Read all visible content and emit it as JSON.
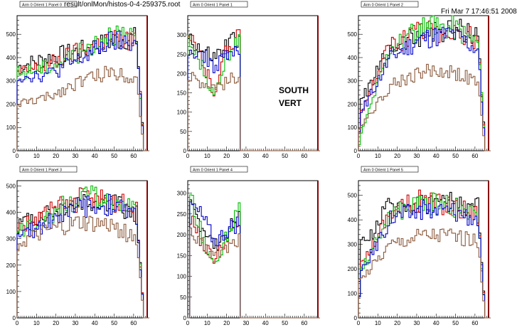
{
  "header": {
    "filename": "result/onlMon/histos-0-4-259375.root",
    "timestamp": "Fri Mar  7 17:46:51 2008"
  },
  "annotation": {
    "line1": "SOUTH",
    "line2": "VERT"
  },
  "colors": {
    "black": "#000000",
    "red": "#cc0000",
    "green": "#00bb00",
    "blue": "#0000cc",
    "brown": "#8b5a3c",
    "frame_right": "#8b0000"
  },
  "chart_data": [
    {
      "type": "line",
      "title": "Arm 0 Orient 1 Panel 0",
      "xlim": [
        0,
        67
      ],
      "ylim": [
        0,
        580
      ],
      "xticks": [
        0,
        10,
        20,
        30,
        40,
        50,
        60
      ],
      "yticks": [
        0,
        100,
        200,
        300,
        400,
        500
      ],
      "profile": {
        "start": 0,
        "end": 64,
        "shape": "broad"
      },
      "series": [
        {
          "color": "black",
          "values": [
            360,
            400,
            430,
            470,
            490
          ]
        },
        {
          "color": "red",
          "values": [
            330,
            370,
            430,
            480,
            470
          ]
        },
        {
          "color": "green",
          "values": [
            330,
            360,
            420,
            510,
            460
          ]
        },
        {
          "color": "blue",
          "values": [
            320,
            330,
            390,
            470,
            460
          ]
        },
        {
          "color": "brown",
          "values": [
            200,
            230,
            300,
            340,
            310
          ]
        }
      ]
    },
    {
      "type": "line",
      "title": "Arm 0 Orient 1 Panel 1",
      "xlim": [
        0,
        67
      ],
      "ylim": [
        0,
        350
      ],
      "xticks": [
        0,
        10,
        20,
        30,
        40,
        50,
        60
      ],
      "yticks": [
        0,
        50,
        100,
        150,
        200,
        250,
        300
      ],
      "profile": {
        "start": 0,
        "end": 26,
        "shape": "dip"
      },
      "series": [
        {
          "color": "black",
          "values": [
            300,
            260,
            240,
            270,
            300
          ]
        },
        {
          "color": "red",
          "values": [
            290,
            240,
            150,
            260,
            320
          ]
        },
        {
          "color": "green",
          "values": [
            280,
            220,
            140,
            240,
            310
          ]
        },
        {
          "color": "blue",
          "values": [
            270,
            250,
            220,
            240,
            260
          ]
        },
        {
          "color": "brown",
          "values": [
            190,
            180,
            170,
            175,
            200
          ]
        }
      ]
    },
    {
      "type": "line",
      "title": "Arm 0 Orient 1 Panel 2",
      "xlim": [
        0,
        67
      ],
      "ylim": [
        0,
        580
      ],
      "xticks": [
        0,
        10,
        20,
        30,
        40,
        50,
        60
      ],
      "yticks": [
        0,
        100,
        200,
        300,
        400,
        500
      ],
      "profile": {
        "start": 0,
        "end": 64,
        "shape": "broad"
      },
      "series": [
        {
          "color": "black",
          "values": [
            200,
            440,
            500,
            520,
            500
          ]
        },
        {
          "color": "red",
          "values": [
            150,
            450,
            510,
            520,
            470
          ]
        },
        {
          "color": "green",
          "values": [
            50,
            450,
            520,
            540,
            450
          ]
        },
        {
          "color": "blue",
          "values": [
            150,
            400,
            480,
            500,
            420
          ]
        },
        {
          "color": "brown",
          "values": [
            100,
            280,
            340,
            340,
            280
          ]
        }
      ]
    },
    {
      "type": "line",
      "title": "Arm 0 Orient 1 Panel 3",
      "xlim": [
        0,
        67
      ],
      "ylim": [
        0,
        520
      ],
      "xticks": [
        0,
        10,
        20,
        30,
        40,
        50,
        60
      ],
      "yticks": [
        0,
        100,
        200,
        300,
        400,
        500
      ],
      "profile": {
        "start": 0,
        "end": 64,
        "shape": "broad"
      },
      "series": [
        {
          "color": "black",
          "values": [
            350,
            400,
            440,
            440,
            380
          ]
        },
        {
          "color": "red",
          "values": [
            340,
            400,
            450,
            450,
            390
          ]
        },
        {
          "color": "green",
          "values": [
            320,
            390,
            460,
            450,
            380
          ]
        },
        {
          "color": "blue",
          "values": [
            300,
            370,
            420,
            430,
            380
          ]
        },
        {
          "color": "brown",
          "values": [
            280,
            330,
            360,
            350,
            290
          ]
        }
      ]
    },
    {
      "type": "line",
      "title": "Arm 0 Orient 1 Panel 4",
      "xlim": [
        0,
        67
      ],
      "ylim": [
        0,
        330
      ],
      "xticks": [
        0,
        10,
        20,
        30,
        40,
        50,
        60
      ],
      "yticks": [
        0,
        50,
        100,
        150,
        200,
        250,
        300
      ],
      "profile": {
        "start": 1,
        "end": 26,
        "shape": "dip"
      },
      "series": [
        {
          "color": "black",
          "values": [
            260,
            220,
            170,
            210,
            240
          ]
        },
        {
          "color": "red",
          "values": [
            240,
            180,
            140,
            200,
            230
          ]
        },
        {
          "color": "green",
          "values": [
            300,
            190,
            120,
            200,
            260
          ]
        },
        {
          "color": "blue",
          "values": [
            270,
            240,
            180,
            210,
            230
          ]
        },
        {
          "color": "brown",
          "values": [
            200,
            170,
            150,
            170,
            190
          ]
        }
      ]
    },
    {
      "type": "line",
      "title": "Arm 0 Orient 1 Panel 5",
      "xlim": [
        0,
        67
      ],
      "ylim": [
        0,
        560
      ],
      "xticks": [
        0,
        10,
        20,
        30,
        40,
        50,
        60
      ],
      "yticks": [
        0,
        100,
        200,
        300,
        400,
        500
      ],
      "profile": {
        "start": 0,
        "end": 64,
        "shape": "broad"
      },
      "series": [
        {
          "color": "black",
          "values": [
            280,
            460,
            470,
            480,
            440
          ]
        },
        {
          "color": "red",
          "values": [
            200,
            440,
            480,
            460,
            420
          ]
        },
        {
          "color": "green",
          "values": [
            180,
            420,
            470,
            460,
            400
          ]
        },
        {
          "color": "blue",
          "values": [
            170,
            410,
            440,
            440,
            400
          ]
        },
        {
          "color": "brown",
          "values": [
            150,
            300,
            340,
            340,
            300
          ]
        }
      ]
    }
  ]
}
